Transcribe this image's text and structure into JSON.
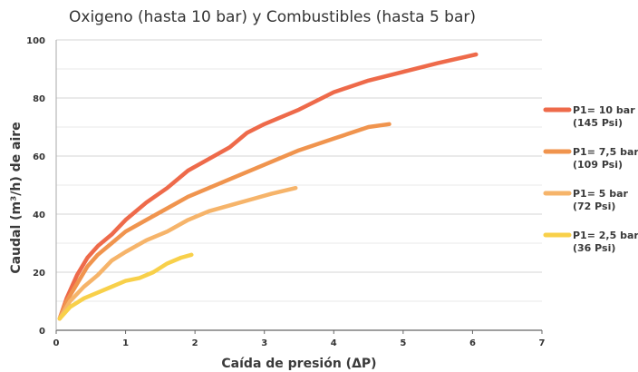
{
  "chart_data": {
    "type": "line",
    "title": "Oxigeno (hasta 10 bar) y Combustibles (hasta 5 bar)",
    "xlabel": "Caída de presión (ΔP)",
    "ylabel": "Caudal (m³/h) de aire",
    "xlim": [
      0,
      7
    ],
    "ylim": [
      0,
      100
    ],
    "xticks": [
      0,
      1,
      2,
      3,
      4,
      5,
      6,
      7
    ],
    "yticks": [
      0,
      20,
      40,
      60,
      80,
      100
    ],
    "grid": "horizontal",
    "legend_position": "right",
    "series": [
      {
        "name": "P1= 10 bar",
        "subname": "(145 Psi)",
        "color": "#ee6a4a",
        "x": [
          0.05,
          0.15,
          0.3,
          0.45,
          0.6,
          0.8,
          1.0,
          1.3,
          1.6,
          1.9,
          2.2,
          2.5,
          2.75,
          3.0,
          3.5,
          4.0,
          4.5,
          5.0,
          5.5,
          6.05
        ],
        "y": [
          4,
          11,
          19,
          25,
          29,
          33,
          38,
          44,
          49,
          55,
          59,
          63,
          68,
          71,
          76,
          82,
          86,
          89,
          92,
          95
        ]
      },
      {
        "name": "P1= 7,5 bar",
        "subname": "(109 Psi)",
        "color": "#f0944e",
        "x": [
          0.05,
          0.15,
          0.3,
          0.45,
          0.6,
          0.8,
          1.0,
          1.3,
          1.6,
          1.9,
          2.2,
          2.5,
          3.0,
          3.5,
          4.0,
          4.5,
          4.8
        ],
        "y": [
          4,
          10,
          16,
          22,
          26,
          30,
          34,
          38,
          42,
          46,
          49,
          52,
          57,
          62,
          66,
          70,
          71
        ]
      },
      {
        "name": "P1= 5 bar",
        "subname": "(72 Psi)",
        "color": "#f6b46a",
        "x": [
          0.05,
          0.2,
          0.4,
          0.6,
          0.8,
          1.0,
          1.3,
          1.6,
          1.9,
          2.2,
          2.5,
          2.8,
          3.1,
          3.45
        ],
        "y": [
          4,
          10,
          15,
          19,
          24,
          27,
          31,
          34,
          38,
          41,
          43,
          45,
          47,
          49
        ]
      },
      {
        "name": "P1= 2,5 bar",
        "subname": "(36 Psi)",
        "color": "#f8d04a",
        "x": [
          0.05,
          0.2,
          0.4,
          0.6,
          0.8,
          1.0,
          1.2,
          1.4,
          1.6,
          1.8,
          1.95
        ],
        "y": [
          4,
          8,
          11,
          13,
          15,
          17,
          18,
          20,
          23,
          25,
          26
        ]
      }
    ]
  }
}
